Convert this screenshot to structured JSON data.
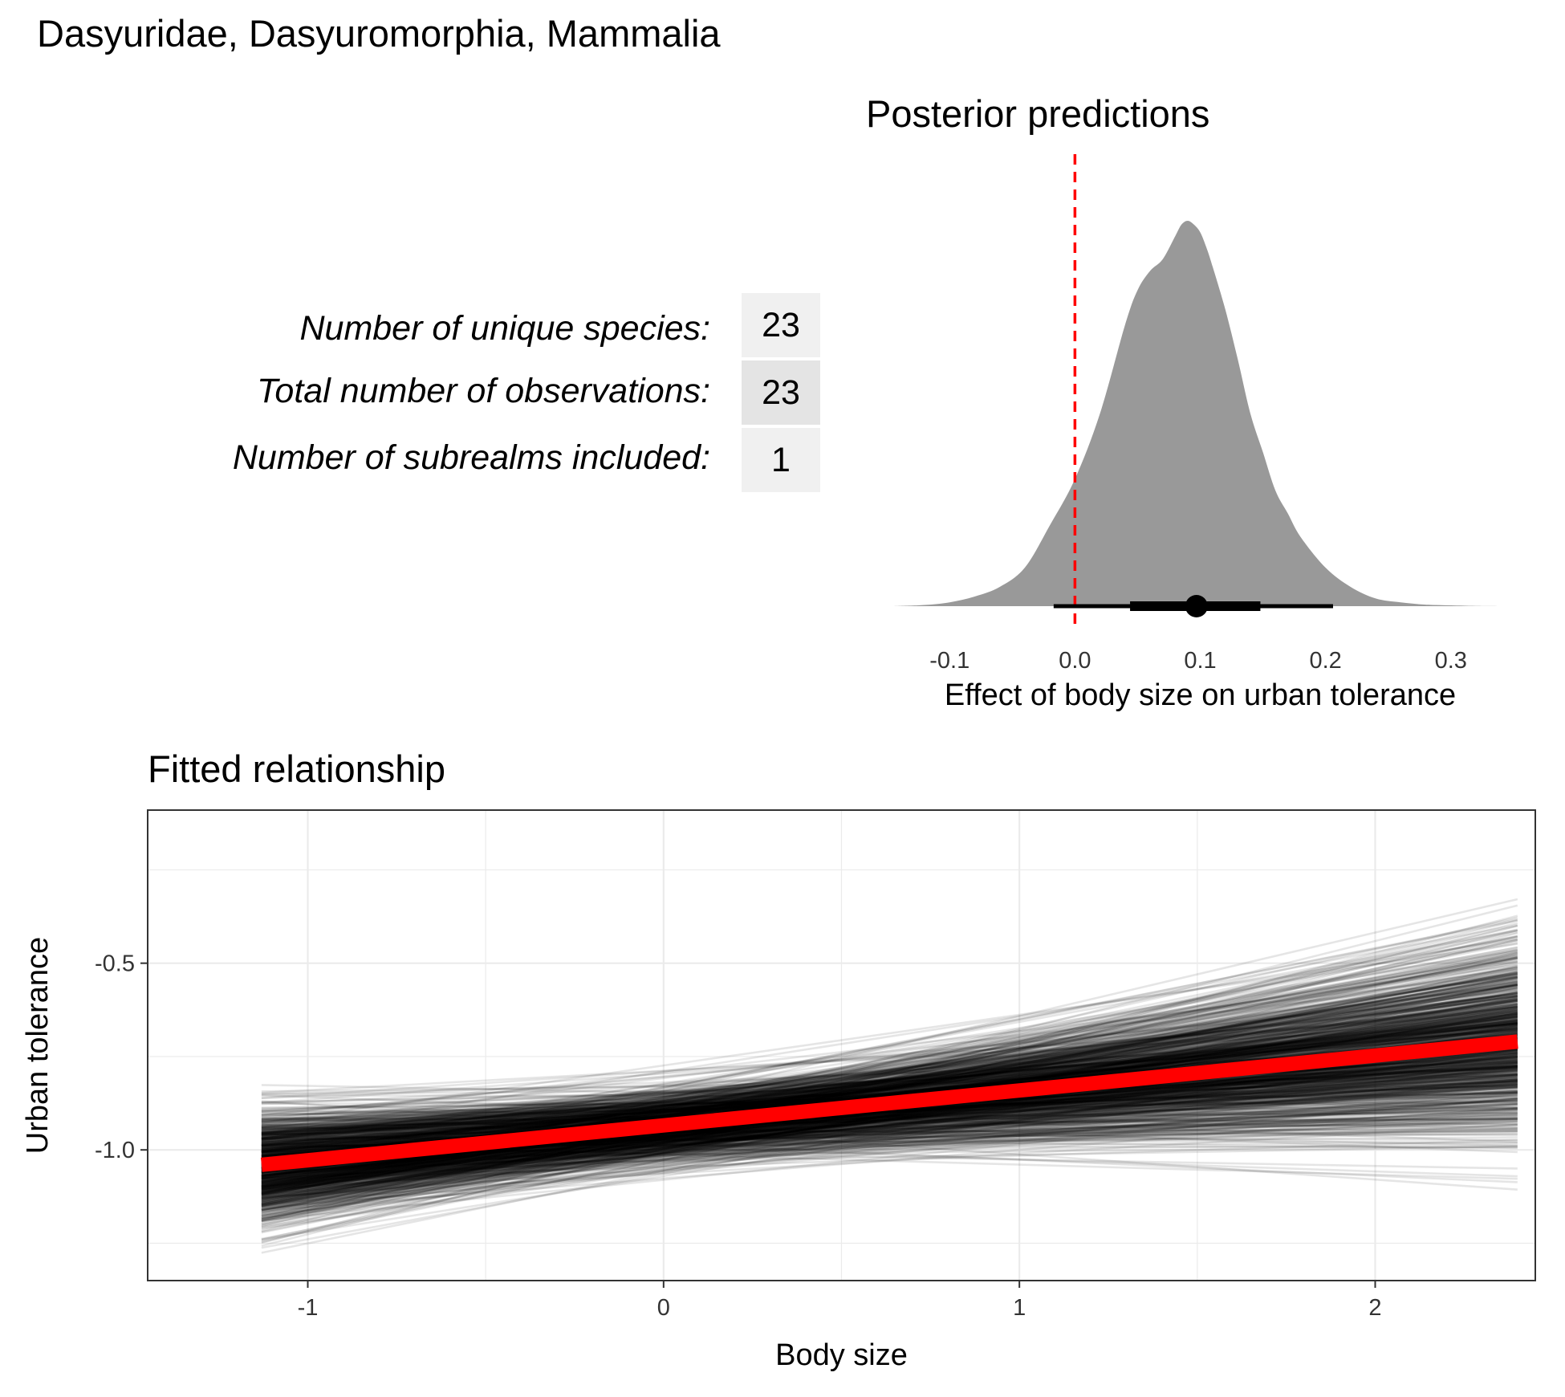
{
  "title": "Dasyuridae, Dasyuromorphia, Mammalia",
  "summary_table": {
    "rows": [
      {
        "label": "Number of unique species:",
        "value": "23"
      },
      {
        "label": "Total number of observations:",
        "value": "23"
      },
      {
        "label": "Number of subrealms included:",
        "value": "1"
      }
    ],
    "cell_colors": [
      "#f0f0f0",
      "#e4e4e4",
      "#f0f0f0"
    ]
  },
  "chart_data": [
    {
      "type": "area",
      "title": "Posterior predictions",
      "xlabel": "Effect of body size on urban tolerance",
      "ylabel": "",
      "xlim": [
        -0.145,
        0.345
      ],
      "x_ticks": [
        -0.1,
        0.0,
        0.1,
        0.2,
        0.3
      ],
      "x_tick_labels": [
        "-0.1",
        "0.0",
        "0.1",
        "0.2",
        "0.3"
      ],
      "density_range": [
        -0.145,
        0.345
      ],
      "density": {
        "x": [
          -0.145,
          -0.12,
          -0.1,
          -0.08,
          -0.06,
          -0.04,
          -0.02,
          0.0,
          0.02,
          0.04,
          0.05,
          0.06,
          0.07,
          0.08,
          0.085,
          0.09,
          0.095,
          0.1,
          0.105,
          0.11,
          0.12,
          0.13,
          0.14,
          0.15,
          0.16,
          0.17,
          0.18,
          0.2,
          0.22,
          0.24,
          0.26,
          0.28,
          0.3,
          0.32,
          0.345
        ],
        "y": [
          0.0,
          0.003,
          0.01,
          0.025,
          0.05,
          0.1,
          0.21,
          0.33,
          0.5,
          0.73,
          0.82,
          0.87,
          0.9,
          0.96,
          0.99,
          1.0,
          0.99,
          0.97,
          0.93,
          0.88,
          0.77,
          0.64,
          0.5,
          0.4,
          0.3,
          0.24,
          0.18,
          0.1,
          0.05,
          0.02,
          0.01,
          0.004,
          0.002,
          0.0005,
          0.0
        ]
      },
      "fill_color": "#999999",
      "reference_line": {
        "x": 0,
        "color": "#ff0000",
        "style": "dashed"
      },
      "point_summary": {
        "median": 0.097,
        "inner_interval": [
          0.044,
          0.148
        ],
        "outer_interval": [
          -0.017,
          0.206
        ]
      },
      "grid": false
    },
    {
      "type": "line",
      "title": "Fitted relationship",
      "xlabel": "Body size",
      "ylabel": "Urban tolerance",
      "xlim": [
        -1.45,
        2.45
      ],
      "ylim": [
        -1.35,
        -0.09
      ],
      "x_ticks": [
        -1,
        0,
        1,
        2
      ],
      "x_tick_labels": [
        "-1",
        "0",
        "1",
        "2"
      ],
      "y_ticks": [
        -1.0,
        -0.5
      ],
      "y_tick_labels": [
        "-1.0",
        "-0.5"
      ],
      "x_range": [
        -1.13,
        2.4
      ],
      "mean_line": {
        "x": [
          -1.13,
          2.4
        ],
        "y": [
          -1.04,
          -0.71
        ],
        "color": "#ff0000"
      },
      "draws": {
        "count": 1000,
        "intercept_mean": -0.935,
        "intercept_sd": 0.05,
        "slope_mean": 0.097,
        "slope_sd": 0.05,
        "color": "#000000",
        "alpha": 0.1
      },
      "grid": true
    }
  ]
}
